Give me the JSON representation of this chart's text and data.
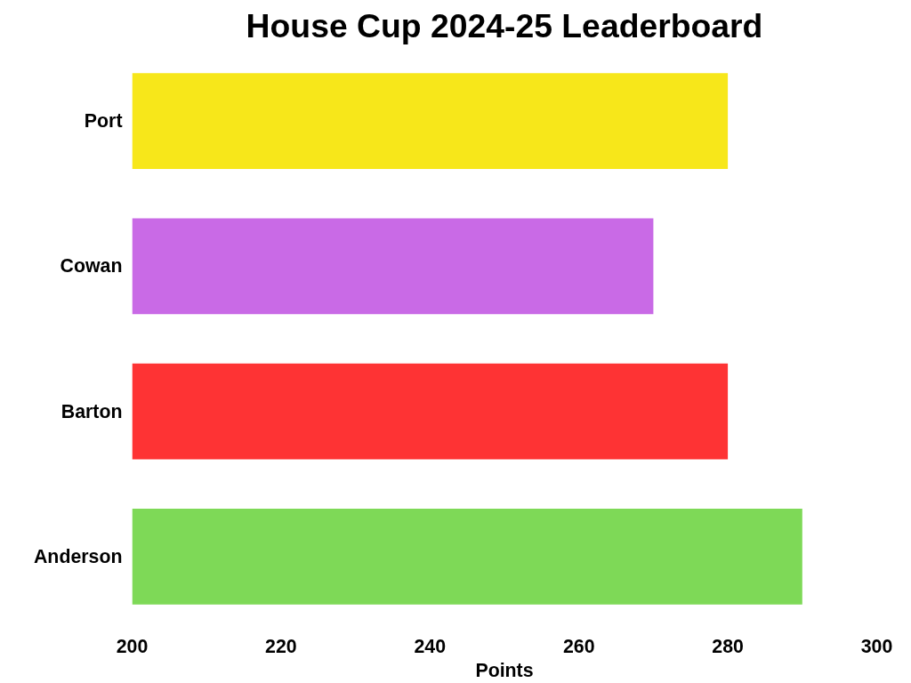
{
  "chart_data": {
    "type": "bar",
    "orientation": "horizontal",
    "title": "House Cup 2024-25 Leaderboard",
    "xlabel": "Points",
    "categories": [
      "Port",
      "Cowan",
      "Barton",
      "Anderson"
    ],
    "values": [
      280,
      270,
      280,
      290
    ],
    "colors": [
      "#f7e71a",
      "#c96ae6",
      "#fe3334",
      "#7ed957"
    ],
    "xlim": [
      200,
      300
    ],
    "xticks": [
      200,
      220,
      240,
      260,
      280,
      300
    ],
    "grid": false
  }
}
